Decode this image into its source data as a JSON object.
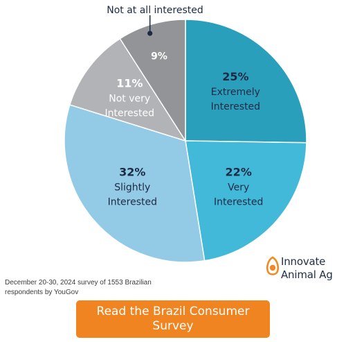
{
  "chart_data": {
    "type": "pie",
    "start_angle_deg": 0,
    "direction": "clockwise",
    "slices": [
      {
        "label": "Extremely Interested",
        "label_lines": [
          "Extremely",
          "Interested"
        ],
        "value": 25,
        "value_text": "25%",
        "color": "#2a9fbc",
        "text_color": "#1c2a44"
      },
      {
        "label": "Very Interested",
        "label_lines": [
          "Very",
          "Interested"
        ],
        "value": 22,
        "value_text": "22%",
        "color": "#43b9d9",
        "text_color": "#1c2a44"
      },
      {
        "label": "Slightly Interested",
        "label_lines": [
          "Slightly",
          "Interested"
        ],
        "value": 32,
        "value_text": "32%",
        "color": "#93cbe6",
        "text_color": "#1c2a44"
      },
      {
        "label": "Not very Interested",
        "label_lines": [
          "Not very",
          "Interested"
        ],
        "value": 11,
        "value_text": "11%",
        "color": "#b1b3b6",
        "text_color": "#ffffff"
      },
      {
        "label": "Not at all interested",
        "label_lines": [
          "Not at all interested"
        ],
        "value": 9,
        "value_text": "9%",
        "color": "#929497",
        "text_color": "#ffffff",
        "callout": true
      }
    ]
  },
  "footnote": "December 20-30, 2024 survey of 1553 Brazilian respondents by YouGov",
  "brand": {
    "name_line1": "Innovate",
    "name_line2": "Animal Ag",
    "icon": "egg-logo-icon",
    "icon_color": "#f08a24"
  },
  "cta": {
    "label": "Read the Brazil Consumer Survey",
    "color": "#ef8421"
  }
}
